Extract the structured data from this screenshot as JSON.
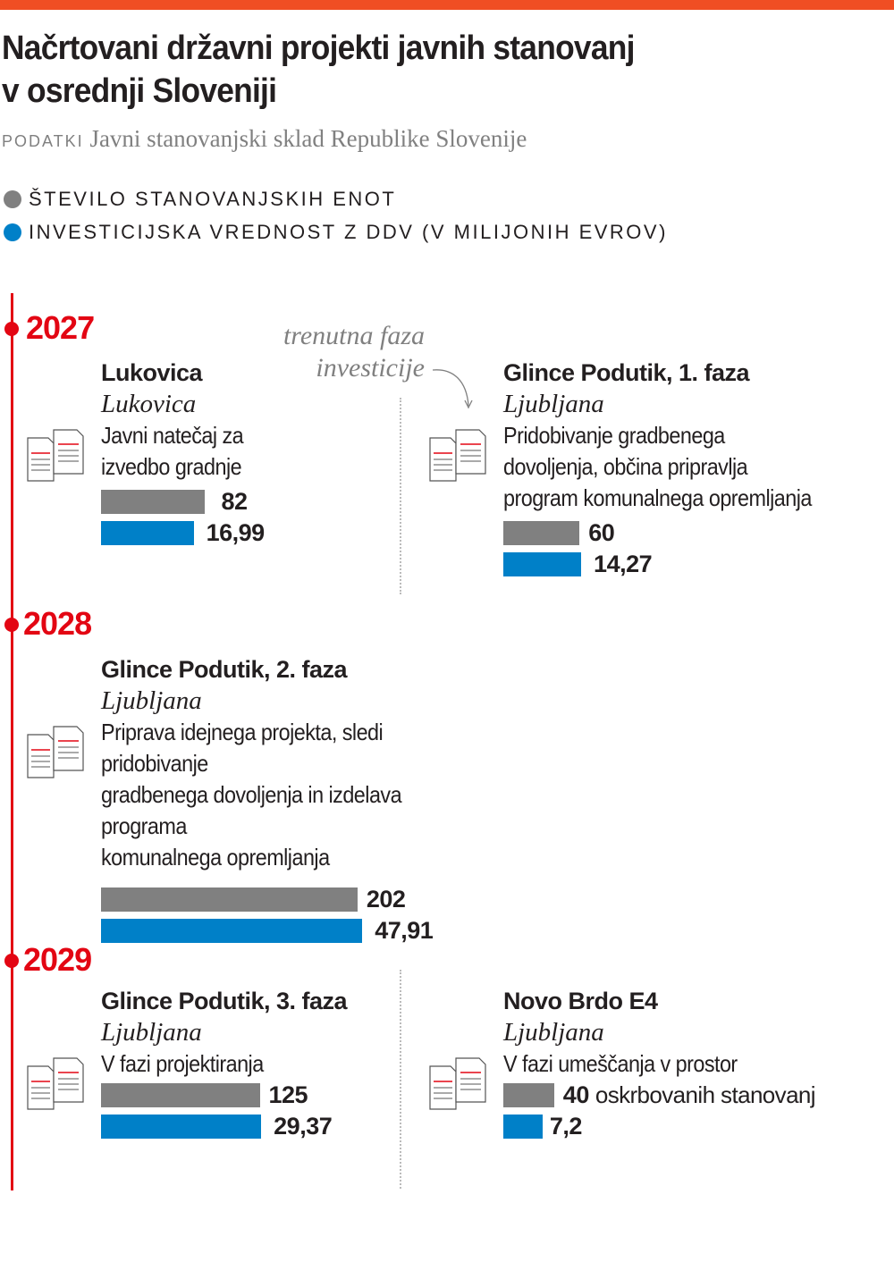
{
  "title_line1": "Načrtovani državni projekti javnih stanovanj",
  "title_line2": "v osrednji Sloveniji",
  "source_label": "PODATKI",
  "source_text": "Javni stanovanjski sklad Republike Slovenije",
  "note": "trenutna faza investicije",
  "colors": {
    "units": "#808080",
    "investment": "#0080c8",
    "accent": "#e30613",
    "topbar": "#f04e23"
  },
  "chart_data": {
    "type": "bar",
    "series": [
      {
        "name": "ŠTEVILO STANOVANJSKIH ENOT",
        "values": [
          82,
          60,
          202,
          125,
          40
        ]
      },
      {
        "name": "INVESTICIJSKA VREDNOST Z DDV (V MILIJONIH EVROV)",
        "values": [
          16.99,
          14.27,
          47.91,
          29.37,
          7.2
        ]
      }
    ],
    "categories": [
      "Lukovica",
      "Glince Podutik, 1. faza",
      "Glince Podutik, 2. faza",
      "Glince Podutik, 3. faza",
      "Novo Brdo E4"
    ],
    "legend": [
      "ŠTEVILO STANOVANJSKIH ENOT",
      "INVESTICIJSKA VREDNOST Z DDV (V MILIJONIH EVROV)"
    ],
    "years": [
      "2027",
      "2028",
      "2029"
    ],
    "projects": [
      {
        "year": "2027",
        "name": "Lukovica",
        "city": "Lukovica",
        "desc": [
          "Javni natečaj za",
          "izvedbo gradnje"
        ],
        "units": 82,
        "units_label": "82",
        "units_extra": "",
        "investment": 16.99,
        "investment_label": "16,99"
      },
      {
        "year": "2027",
        "name": "Glince Podutik, 1. faza",
        "city": "Ljubljana",
        "desc": [
          "Pridobivanje gradbenega",
          "dovoljenja, občina pripravlja",
          "program komunalnega opremljanja"
        ],
        "units": 60,
        "units_label": "60",
        "units_extra": "",
        "investment": 14.27,
        "investment_label": "14,27"
      },
      {
        "year": "2028",
        "name": "Glince Podutik, 2. faza",
        "city": "Ljubljana",
        "desc": [
          "Priprava idejnega projekta, sledi pridobivanje",
          "gradbenega dovoljenja in izdelava programa",
          "komunalnega opremljanja"
        ],
        "units": 202,
        "units_label": "202",
        "units_extra": "",
        "investment": 47.91,
        "investment_label": "47,91"
      },
      {
        "year": "2029",
        "name": "Glince Podutik, 3. faza",
        "city": "Ljubljana",
        "desc": [
          "V fazi projektiranja"
        ],
        "units": 125,
        "units_label": "125",
        "units_extra": "",
        "investment": 29.37,
        "investment_label": "29,37"
      },
      {
        "year": "2029",
        "name": "Novo Brdo E4",
        "city": "Ljubljana",
        "desc": [
          "V fazi umeščanja v prostor"
        ],
        "units": 40,
        "units_label": "40",
        "units_extra": "oskrbovanih stanovanj",
        "investment": 7.2,
        "investment_label": "7,2"
      }
    ]
  }
}
